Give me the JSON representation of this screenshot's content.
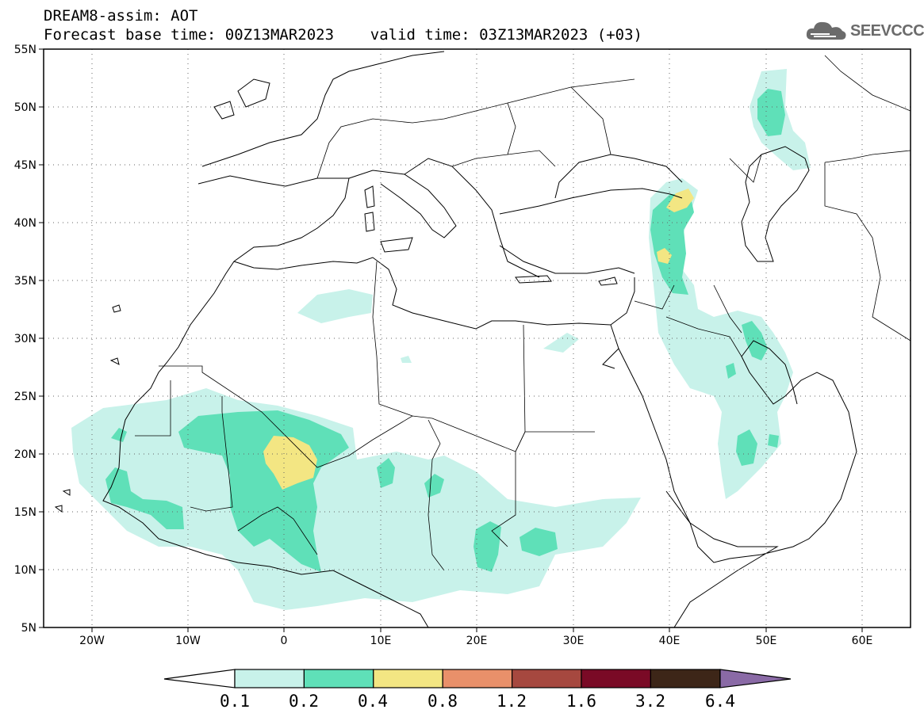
{
  "header": {
    "line1": "DREAM8-assim: AOT",
    "line2": "Forecast base time: 00Z13MAR2023    valid time: 03Z13MAR2023 (+03)"
  },
  "logo": {
    "text": "SEEVCCC",
    "icon": "cloud-icon"
  },
  "map": {
    "region": {
      "lon": [
        -25,
        65
      ],
      "lat": [
        5,
        55
      ]
    },
    "lat_ticks": [
      "55N",
      "50N",
      "45N",
      "40N",
      "35N",
      "30N",
      "25N",
      "20N",
      "15N",
      "10N",
      "5N"
    ],
    "lon_ticks": [
      "20W",
      "10W",
      "0",
      "10E",
      "20E",
      "30E",
      "40E",
      "50E",
      "60E"
    ],
    "grid": "dotted"
  },
  "colorbar": {
    "levels": [
      "0.1",
      "0.2",
      "0.4",
      "0.8",
      "1.2",
      "1.6",
      "3.2",
      "6.4"
    ],
    "colors": [
      "#c8f2ea",
      "#5fe0b8",
      "#f3e683",
      "#e9906a",
      "#a6483f",
      "#7a0a26",
      "#3d2618",
      "#8a6aa6"
    ]
  }
}
